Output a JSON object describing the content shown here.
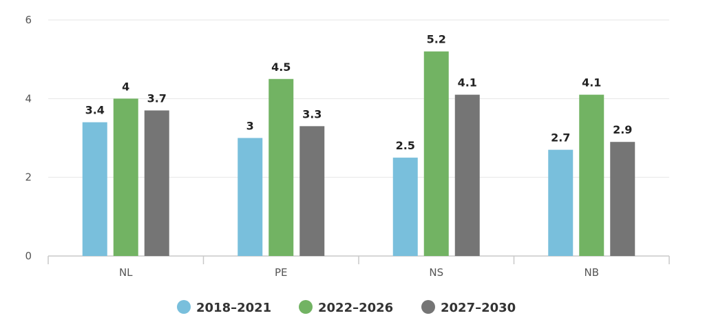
{
  "chart_data": {
    "type": "bar",
    "title": "",
    "xlabel": "",
    "ylabel": "",
    "categories": [
      "NL",
      "PE",
      "NS",
      "NB"
    ],
    "ylim": [
      0,
      6
    ],
    "yticks": [
      0,
      2,
      4,
      6
    ],
    "grid": true,
    "legend_position": "bottom",
    "series": [
      {
        "name": "2018–2021",
        "color": "#79bfdc",
        "values": [
          3.4,
          3,
          2.5,
          2.7
        ],
        "labels": [
          "3.4",
          "3",
          "2.5",
          "2.7"
        ]
      },
      {
        "name": "2022–2026",
        "color": "#72b363",
        "values": [
          4,
          4.5,
          5.2,
          4.1
        ],
        "labels": [
          "4",
          "4.5",
          "5.2",
          "4.1"
        ]
      },
      {
        "name": "2027–2030",
        "color": "#757575",
        "values": [
          3.7,
          3.3,
          4.1,
          2.9
        ],
        "labels": [
          "3.7",
          "3.3",
          "4.1",
          "2.9"
        ]
      }
    ]
  }
}
